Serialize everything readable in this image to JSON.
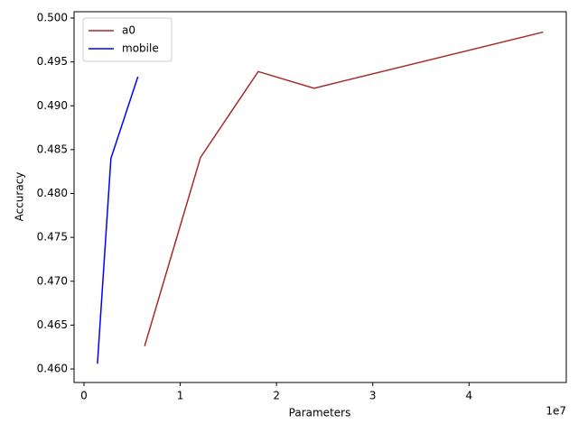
{
  "chart_data": {
    "type": "line",
    "xlabel": "Parameters",
    "ylabel": "Accuracy",
    "x_offset_label": "1e7",
    "series": [
      {
        "name": "a0",
        "color": "#a52a2a",
        "x": [
          6300000,
          12100000,
          18100000,
          23900000,
          47700000
        ],
        "values": [
          0.4626,
          0.4841,
          0.4939,
          0.492,
          0.4984
        ]
      },
      {
        "name": "mobile",
        "color": "#0000ff",
        "x": [
          1400000,
          2800000,
          5600000
        ],
        "values": [
          0.4606,
          0.484,
          0.4933
        ]
      }
    ],
    "xlim": [
      -1030000,
      50100000
    ],
    "xticks": [
      0,
      {
        "value": 10000000,
        "label": "1"
      },
      {
        "value": 20000000,
        "label": "2"
      },
      {
        "value": 30000000,
        "label": "3"
      },
      {
        "value": 40000000,
        "label": "4"
      }
    ],
    "ylim": [
      0.45846,
      0.50072
    ],
    "yticks": [
      {
        "value": 0.46,
        "label": "0.460"
      },
      0.465,
      {
        "value": 0.47,
        "label": "0.470"
      },
      0.475,
      {
        "value": 0.48,
        "label": "0.480"
      },
      0.485,
      {
        "value": 0.49,
        "label": "0.490"
      },
      0.495,
      {
        "value": 0.5,
        "label": "0.500"
      }
    ],
    "legend": "upper left",
    "grid": false
  }
}
